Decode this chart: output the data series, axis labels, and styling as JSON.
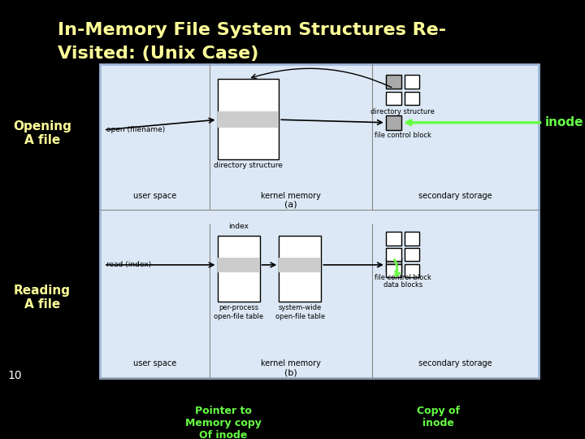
{
  "title_line1": "In-Memory File System Structures Re-",
  "title_line2": "Visited: (Unix Case)",
  "title_color": "#ffff99",
  "background_color": "#000000",
  "diagram_bg": "#e8eef8",
  "diagram_border": "#a0b8d8",
  "label_opening": "Opening\nA file",
  "label_reading": "Reading\nA file",
  "label_inode": "inode",
  "label_pointer": "Pointer to\nMemory copy\nOf inode",
  "label_copy": "Copy of\ninode",
  "label_10": "10",
  "green_color": "#66ff44",
  "yellow_color": "#ffff99",
  "box_outline": "#555555",
  "box_fill_gray": "#aaaaaa",
  "box_fill_white": "#ffffff"
}
